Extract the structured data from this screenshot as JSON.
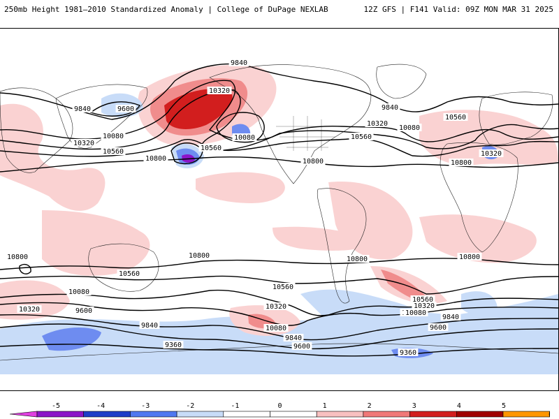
{
  "header": {
    "title_left": "250mb Height 1981–2010 Standardized Anomaly | College of DuPage NEXLAB",
    "title_right": "12Z GFS | F141 Valid: 09Z MON MAR 31 2025"
  },
  "contour_labels": [
    {
      "text": "9840"
    },
    {
      "text": "10320"
    },
    {
      "text": "9600"
    },
    {
      "text": "9840"
    },
    {
      "text": "10080"
    },
    {
      "text": "10320"
    },
    {
      "text": "10560"
    },
    {
      "text": "10800"
    },
    {
      "text": "10080"
    },
    {
      "text": "10560"
    },
    {
      "text": "9840"
    },
    {
      "text": "10320"
    },
    {
      "text": "10080"
    },
    {
      "text": "10560"
    },
    {
      "text": "10560"
    },
    {
      "text": "10320"
    },
    {
      "text": "10800"
    },
    {
      "text": "10800"
    },
    {
      "text": "10800"
    },
    {
      "text": "10800"
    },
    {
      "text": "10800"
    },
    {
      "text": "10800"
    },
    {
      "text": "10560"
    },
    {
      "text": "10560"
    },
    {
      "text": "10560"
    },
    {
      "text": "10320"
    },
    {
      "text": "10080"
    },
    {
      "text": "10320"
    },
    {
      "text": "10080"
    },
    {
      "text": "10080"
    },
    {
      "text": "9600"
    },
    {
      "text": "9840"
    },
    {
      "text": "10560"
    },
    {
      "text": "10320"
    },
    {
      "text": "10080"
    },
    {
      "text": "9840"
    },
    {
      "text": "9600"
    },
    {
      "text": "9840"
    },
    {
      "text": "9600"
    },
    {
      "text": "9360"
    },
    {
      "text": "9360"
    }
  ],
  "colorbar": {
    "labels": [
      "-5",
      "-4",
      "-3",
      "-2",
      "-1",
      "0",
      "1",
      "2",
      "3",
      "4",
      "5"
    ],
    "colors": [
      "#e040e0",
      "#8c14c8",
      "#1e3cc8",
      "#5078f0",
      "#c8dcf8",
      "#ffffff",
      "#ffffff",
      "#f8c0c0",
      "#f07878",
      "#d21e1e",
      "#a00000",
      "#ff9600",
      "#ffd200"
    ]
  },
  "palette": {
    "neg1": "#c8dcf8",
    "neg2": "#6e8cf0",
    "neg3": "#1e3cc8",
    "neg4": "#8c14c8",
    "neg5": "#e040e0",
    "pos1": "#fad2d2",
    "pos2": "#f08c8c",
    "pos3": "#d21e1e",
    "pos4": "#a00000"
  }
}
